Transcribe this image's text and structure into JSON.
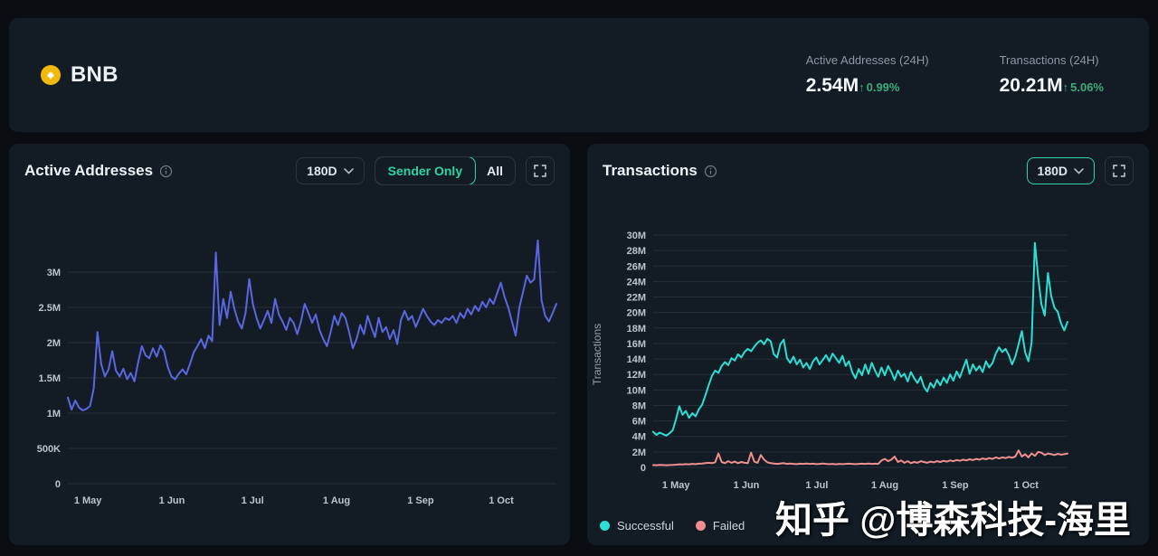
{
  "header": {
    "coin": "BNB",
    "coin_icon": "bnb-diamond",
    "stats": [
      {
        "label": "Active Addresses (24H)",
        "value": "2.54M",
        "arrow": "↑",
        "change": "0.99%"
      },
      {
        "label": "Transactions (24H)",
        "value": "20.21M",
        "arrow": "↑",
        "change": "5.06%"
      }
    ]
  },
  "left_panel": {
    "title": "Active Addresses",
    "range_selector": "180D",
    "segments": {
      "sender_only": "Sender Only",
      "all": "All"
    },
    "active_segment": "Sender Only"
  },
  "right_panel": {
    "title": "Transactions",
    "range_selector": "180D",
    "y_axis_title": "Transactions",
    "legend": [
      {
        "label": "Successful",
        "color": "#2bdfd2"
      },
      {
        "label": "Failed",
        "color": "#ef8f8f"
      }
    ]
  },
  "watermark": "知乎 @博森科技-海里",
  "colors": {
    "page_bg": "#0a0e13",
    "panel_bg": "#131c25",
    "accent_green": "#2ed3a2",
    "change_green": "#3cab77",
    "active_addresses_line": "#5a67e0",
    "successful_line": "#2bdfd2",
    "failed_line": "#ef8f8f",
    "bnb_gold": "#f0b90b"
  },
  "chart_data": [
    {
      "type": "line",
      "title": "Active Addresses",
      "unit": "millions of addresses",
      "ylim": [
        0,
        3.5
      ],
      "grid": "horizontal",
      "y_ticks": [
        {
          "v": 0,
          "label": "0"
        },
        {
          "v": 0.5,
          "label": "500K"
        },
        {
          "v": 1,
          "label": "1M"
        },
        {
          "v": 1.5,
          "label": "1.5M"
        },
        {
          "v": 2,
          "label": "2M"
        },
        {
          "v": 2.5,
          "label": "2.5M"
        },
        {
          "v": 3,
          "label": "3M"
        }
      ],
      "x_ticks": [
        {
          "pos": 0.041,
          "label": "1 May"
        },
        {
          "pos": 0.213,
          "label": "1 Jun"
        },
        {
          "pos": 0.378,
          "label": "1 Jul"
        },
        {
          "pos": 0.55,
          "label": "1 Aug"
        },
        {
          "pos": 0.722,
          "label": "1 Sep"
        },
        {
          "pos": 0.887,
          "label": "1 Oct"
        }
      ],
      "series": [
        {
          "name": "Active Addresses (Sender Only)",
          "color": "#5a67e0",
          "values": [
            1.22,
            1.05,
            1.18,
            1.08,
            1.04,
            1.06,
            1.1,
            1.35,
            2.15,
            1.7,
            1.52,
            1.62,
            1.88,
            1.6,
            1.52,
            1.63,
            1.48,
            1.57,
            1.45,
            1.72,
            1.95,
            1.82,
            1.78,
            1.92,
            1.8,
            1.96,
            1.88,
            1.65,
            1.52,
            1.48,
            1.56,
            1.62,
            1.55,
            1.7,
            1.86,
            1.95,
            2.05,
            1.92,
            2.1,
            2.02,
            3.28,
            2.25,
            2.62,
            2.35,
            2.72,
            2.48,
            2.3,
            2.2,
            2.42,
            2.9,
            2.55,
            2.35,
            2.2,
            2.32,
            2.45,
            2.28,
            2.62,
            2.4,
            2.3,
            2.18,
            2.35,
            2.28,
            2.12,
            2.3,
            2.55,
            2.42,
            2.28,
            2.4,
            2.18,
            2.05,
            1.95,
            2.15,
            2.38,
            2.25,
            2.42,
            2.35,
            2.15,
            1.92,
            2.05,
            2.25,
            2.12,
            2.38,
            2.22,
            2.08,
            2.35,
            2.15,
            2.22,
            2.05,
            2.18,
            1.98,
            2.32,
            2.45,
            2.32,
            2.38,
            2.22,
            2.35,
            2.48,
            2.38,
            2.3,
            2.25,
            2.32,
            2.28,
            2.35,
            2.32,
            2.38,
            2.28,
            2.42,
            2.35,
            2.48,
            2.4,
            2.52,
            2.45,
            2.58,
            2.5,
            2.62,
            2.55,
            2.7,
            2.85,
            2.65,
            2.5,
            2.3,
            2.1,
            2.5,
            2.72,
            2.95,
            2.85,
            2.9,
            3.45,
            2.6,
            2.38,
            2.3,
            2.42,
            2.55
          ]
        }
      ]
    },
    {
      "type": "line",
      "title": "Transactions",
      "unit": "millions of transactions",
      "ylim": [
        0,
        30
      ],
      "grid": "horizontal",
      "y_ticks": [
        {
          "v": 0,
          "label": "0"
        },
        {
          "v": 2,
          "label": "2M"
        },
        {
          "v": 4,
          "label": "4M"
        },
        {
          "v": 6,
          "label": "6M"
        },
        {
          "v": 8,
          "label": "8M"
        },
        {
          "v": 10,
          "label": "10M"
        },
        {
          "v": 12,
          "label": "12M"
        },
        {
          "v": 14,
          "label": "14M"
        },
        {
          "v": 16,
          "label": "16M"
        },
        {
          "v": 18,
          "label": "18M"
        },
        {
          "v": 20,
          "label": "20M"
        },
        {
          "v": 22,
          "label": "22M"
        },
        {
          "v": 24,
          "label": "24M"
        },
        {
          "v": 26,
          "label": "26M"
        },
        {
          "v": 28,
          "label": "28M"
        },
        {
          "v": 30,
          "label": "30M"
        }
      ],
      "x_ticks": [
        {
          "pos": 0.055,
          "label": "1 May"
        },
        {
          "pos": 0.225,
          "label": "1 Jun"
        },
        {
          "pos": 0.395,
          "label": "1 Jul"
        },
        {
          "pos": 0.559,
          "label": "1 Aug"
        },
        {
          "pos": 0.729,
          "label": "1 Sep"
        },
        {
          "pos": 0.9,
          "label": "1 Oct"
        }
      ],
      "series": [
        {
          "name": "Successful",
          "color": "#2bdfd2",
          "values": [
            4.6,
            4.2,
            4.5,
            4.3,
            4.1,
            4.4,
            4.8,
            6.2,
            7.9,
            6.8,
            7.3,
            6.4,
            7.0,
            6.6,
            7.5,
            8.1,
            9.3,
            10.6,
            11.8,
            12.5,
            12.2,
            13.1,
            13.6,
            13.2,
            14.1,
            13.8,
            14.6,
            14.2,
            14.9,
            15.3,
            15.0,
            15.6,
            16.1,
            16.4,
            15.9,
            16.6,
            16.3,
            14.6,
            14.2,
            15.9,
            16.5,
            14.1,
            13.5,
            14.3,
            13.3,
            13.9,
            12.9,
            13.5,
            12.7,
            13.7,
            14.2,
            13.3,
            13.9,
            14.5,
            13.7,
            14.7,
            14.1,
            13.5,
            14.4,
            13.1,
            13.7,
            12.3,
            11.5,
            12.7,
            11.9,
            13.3,
            12.1,
            13.5,
            12.5,
            11.7,
            12.9,
            11.9,
            13.1,
            12.3,
            11.3,
            12.5,
            11.7,
            12.1,
            11.1,
            12.3,
            11.5,
            10.9,
            11.7,
            10.4,
            9.8,
            10.9,
            10.3,
            11.3,
            10.6,
            11.6,
            10.9,
            12.0,
            11.2,
            12.4,
            11.6,
            12.8,
            13.9,
            12.1,
            13.3,
            12.5,
            13.1,
            12.3,
            13.7,
            12.9,
            13.5,
            14.7,
            15.5,
            14.9,
            15.3,
            14.5,
            13.3,
            14.3,
            15.9,
            17.6,
            14.9,
            13.7,
            16.1,
            29.0,
            24.6,
            21.1,
            19.6,
            25.1,
            22.1,
            20.6,
            20.1,
            18.6,
            17.7,
            18.8
          ]
        },
        {
          "name": "Failed",
          "color": "#ef8f8f",
          "values": [
            0.3,
            0.28,
            0.32,
            0.3,
            0.28,
            0.3,
            0.32,
            0.35,
            0.4,
            0.38,
            0.42,
            0.4,
            0.45,
            0.42,
            0.48,
            0.5,
            0.55,
            0.6,
            0.55,
            0.65,
            1.8,
            0.7,
            0.55,
            0.8,
            0.6,
            0.75,
            0.55,
            0.7,
            0.6,
            0.55,
            1.9,
            0.75,
            0.6,
            1.6,
            1.0,
            0.65,
            0.55,
            0.5,
            0.45,
            0.5,
            0.55,
            0.45,
            0.5,
            0.45,
            0.42,
            0.48,
            0.45,
            0.5,
            0.45,
            0.48,
            0.42,
            0.45,
            0.5,
            0.45,
            0.42,
            0.45,
            0.4,
            0.45,
            0.42,
            0.45,
            0.48,
            0.45,
            0.42,
            0.45,
            0.48,
            0.45,
            0.5,
            0.45,
            0.48,
            0.45,
            0.9,
            1.1,
            0.8,
            1.0,
            1.4,
            0.7,
            0.9,
            0.6,
            0.8,
            0.55,
            0.7,
            0.6,
            0.8,
            0.7,
            0.6,
            0.75,
            0.65,
            0.8,
            0.7,
            0.85,
            0.75,
            0.9,
            0.8,
            0.95,
            0.85,
            1.0,
            0.9,
            1.05,
            0.95,
            1.1,
            1.0,
            1.15,
            1.05,
            1.2,
            1.1,
            1.3,
            1.15,
            1.3,
            1.2,
            1.35,
            1.25,
            1.4,
            2.2,
            1.4,
            1.7,
            1.3,
            1.8,
            1.5,
            2.0,
            1.9,
            1.6,
            1.8,
            1.7,
            1.6,
            1.75,
            1.65,
            1.7,
            1.8
          ]
        }
      ]
    }
  ]
}
